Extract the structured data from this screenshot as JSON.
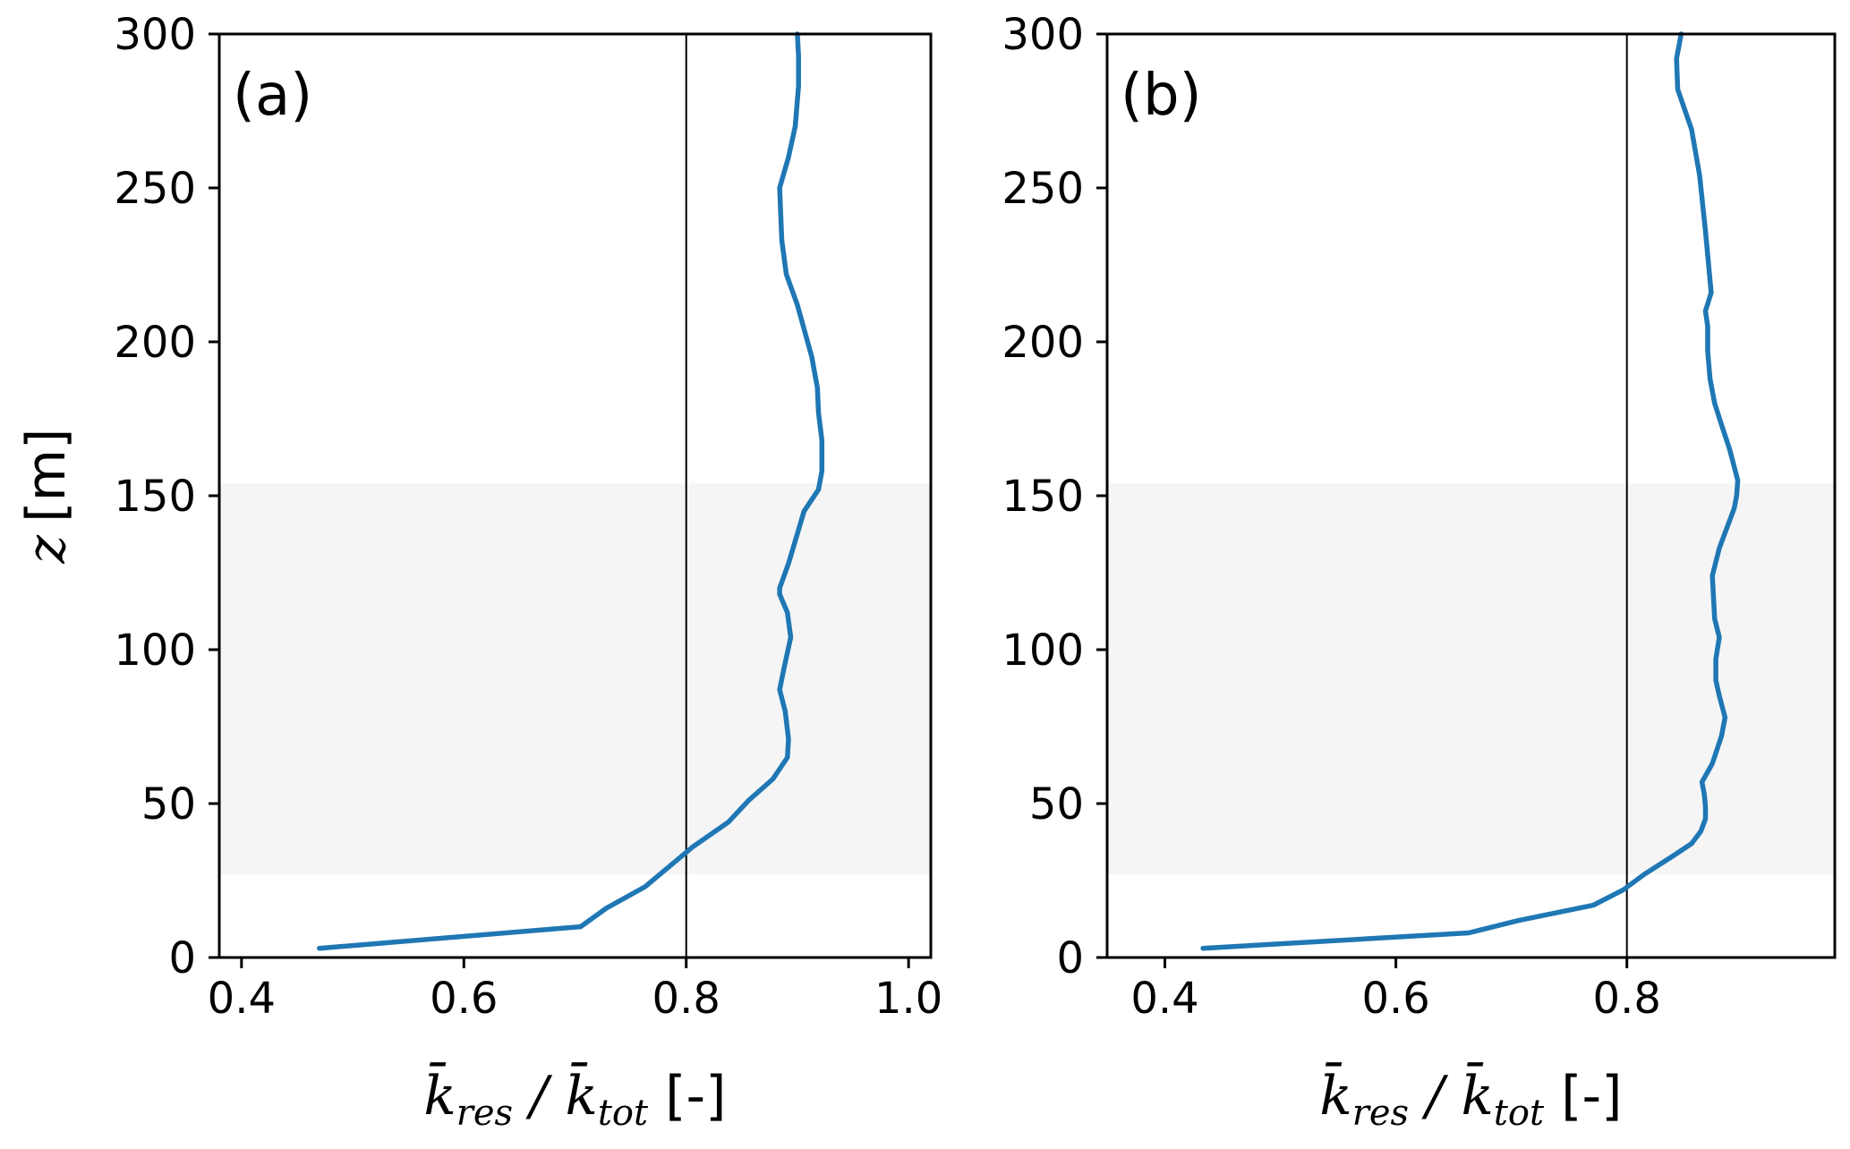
{
  "chart_data": [
    {
      "type": "line",
      "panel_label": "(a)",
      "xlabel": {
        "k1": "k",
        "sub1": "res",
        "slash": "/",
        "k2": "k",
        "sub2": "tot",
        "unit": "[-]"
      },
      "ylabel": {
        "var": "z",
        "unit": "[m]"
      },
      "xlim": [
        0.38,
        1.02
      ],
      "ylim": [
        0,
        300
      ],
      "xticks": [
        0.4,
        0.6,
        0.8,
        1.0
      ],
      "xtick_labels": [
        "0.4",
        "0.6",
        "0.8",
        "1.0"
      ],
      "yticks": [
        0,
        50,
        100,
        150,
        200,
        250,
        300
      ],
      "ytick_labels": [
        "0",
        "50",
        "100",
        "150",
        "200",
        "250",
        "300"
      ],
      "vline_x": 0.8,
      "shaded_band": {
        "y_from": 27,
        "y_to": 154,
        "color": "#f5f5f6"
      },
      "series": [
        {
          "color": "#1f77b4",
          "x": [
            0.47,
            0.705,
            0.728,
            0.763,
            0.806,
            0.838,
            0.856,
            0.878,
            0.891,
            0.892,
            0.889,
            0.884,
            0.888,
            0.894,
            0.891,
            0.884,
            0.884,
            0.892,
            0.906,
            0.919,
            0.922,
            0.922,
            0.919,
            0.918,
            0.913,
            0.9,
            0.89,
            0.886,
            0.884,
            0.892,
            0.898,
            0.901,
            0.901,
            0.901,
            0.9,
            0.9
          ],
          "y": [
            3,
            10,
            16,
            23,
            36,
            44,
            51,
            58,
            65,
            71,
            80,
            87,
            94,
            104,
            112,
            118,
            120,
            128,
            145,
            152,
            158,
            168,
            177,
            185,
            195,
            212,
            222,
            233,
            250,
            260,
            270,
            283,
            288,
            293,
            300,
            300
          ]
        }
      ]
    },
    {
      "type": "line",
      "panel_label": "(b)",
      "xlabel": {
        "k1": "k",
        "sub1": "res",
        "slash": "/",
        "k2": "k",
        "sub2": "tot",
        "unit": "[-]"
      },
      "ylabel": {
        "var": "",
        "unit": ""
      },
      "xlim": [
        0.35,
        0.98
      ],
      "ylim": [
        0,
        300
      ],
      "xticks": [
        0.4,
        0.6,
        0.8
      ],
      "xtick_labels": [
        "0.4",
        "0.6",
        "0.8"
      ],
      "yticks": [
        0,
        50,
        100,
        150,
        200,
        250,
        300
      ],
      "ytick_labels": [
        "0",
        "50",
        "100",
        "150",
        "200",
        "250",
        "300"
      ],
      "vline_x": 0.8,
      "shaded_band": {
        "y_from": 27,
        "y_to": 154,
        "color": "#f5f5f6"
      },
      "series": [
        {
          "color": "#1f77b4",
          "x": [
            0.433,
            0.663,
            0.706,
            0.771,
            0.797,
            0.815,
            0.84,
            0.856,
            0.864,
            0.868,
            0.868,
            0.867,
            0.865,
            0.874,
            0.882,
            0.885,
            0.88,
            0.877,
            0.877,
            0.88,
            0.876,
            0.875,
            0.874,
            0.88,
            0.887,
            0.893,
            0.895,
            0.896,
            0.889,
            0.882,
            0.876,
            0.872,
            0.87,
            0.87,
            0.868,
            0.873,
            0.868,
            0.863,
            0.856,
            0.844,
            0.843,
            0.847
          ],
          "y": [
            3,
            8,
            12,
            17,
            22,
            27,
            33,
            37,
            41,
            45,
            49,
            53,
            57,
            63,
            72,
            78,
            85,
            90,
            97,
            104,
            110,
            117,
            124,
            133,
            140,
            146,
            150,
            155,
            165,
            173,
            180,
            188,
            197,
            205,
            210,
            216,
            236,
            254,
            269,
            282,
            292,
            300
          ]
        }
      ]
    }
  ]
}
